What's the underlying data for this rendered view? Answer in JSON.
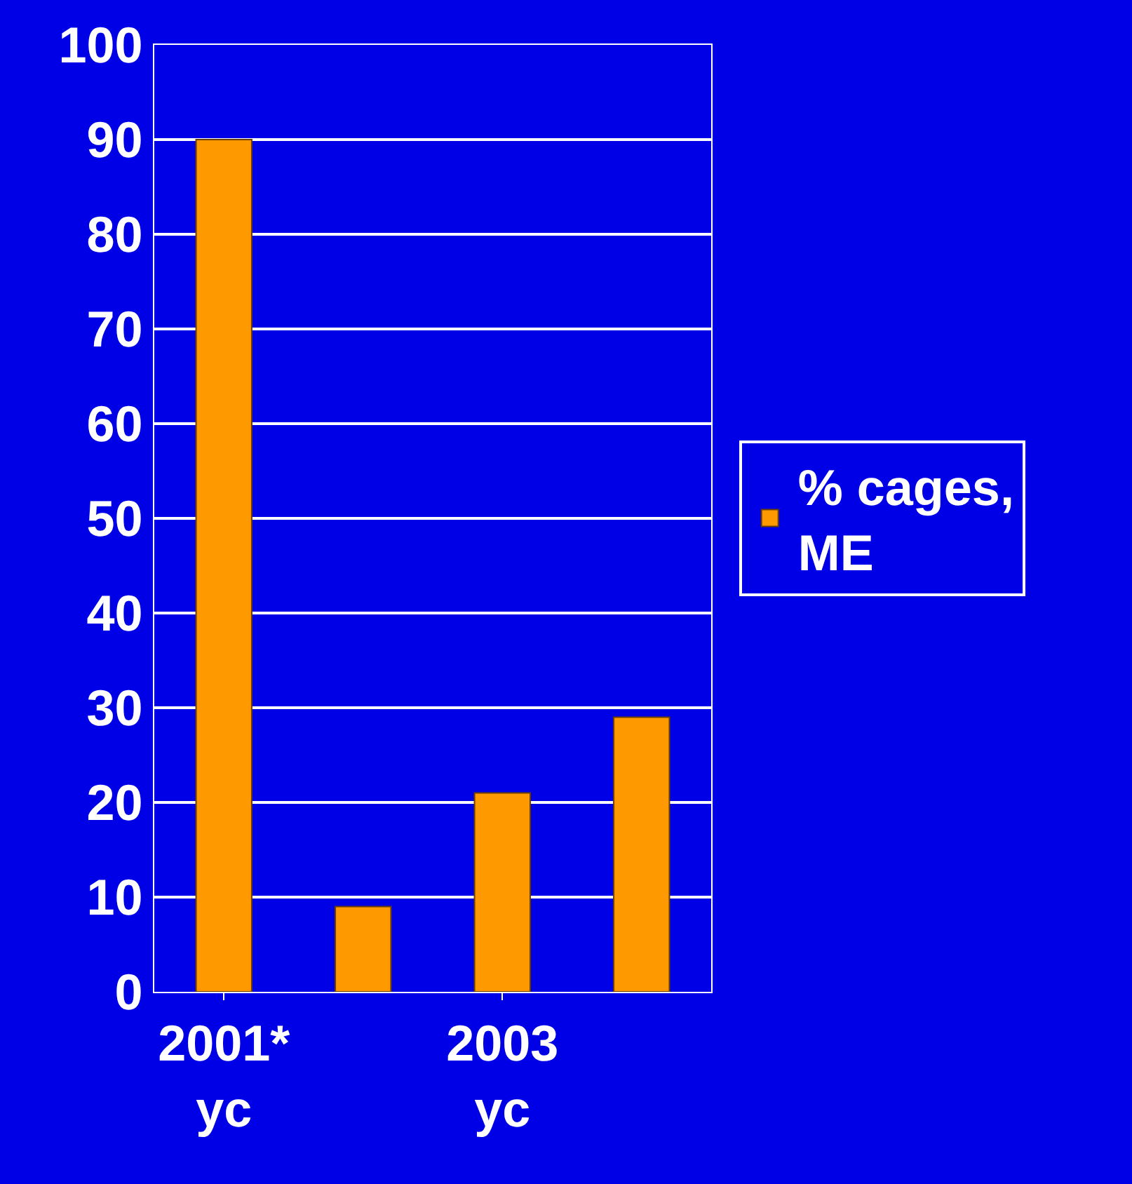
{
  "chart_data": {
    "type": "bar",
    "categories": [
      "2001*\nyc",
      null,
      "2003\nyc",
      null
    ],
    "series": [
      {
        "name": "% cages,\nME",
        "color": "#ff9900",
        "values": [
          90,
          9,
          21,
          29
        ]
      }
    ],
    "ylim": [
      0,
      100
    ],
    "yticks": [
      0,
      10,
      20,
      30,
      40,
      50,
      60,
      70,
      80,
      90,
      100
    ],
    "grid": "y",
    "legend": "right"
  }
}
